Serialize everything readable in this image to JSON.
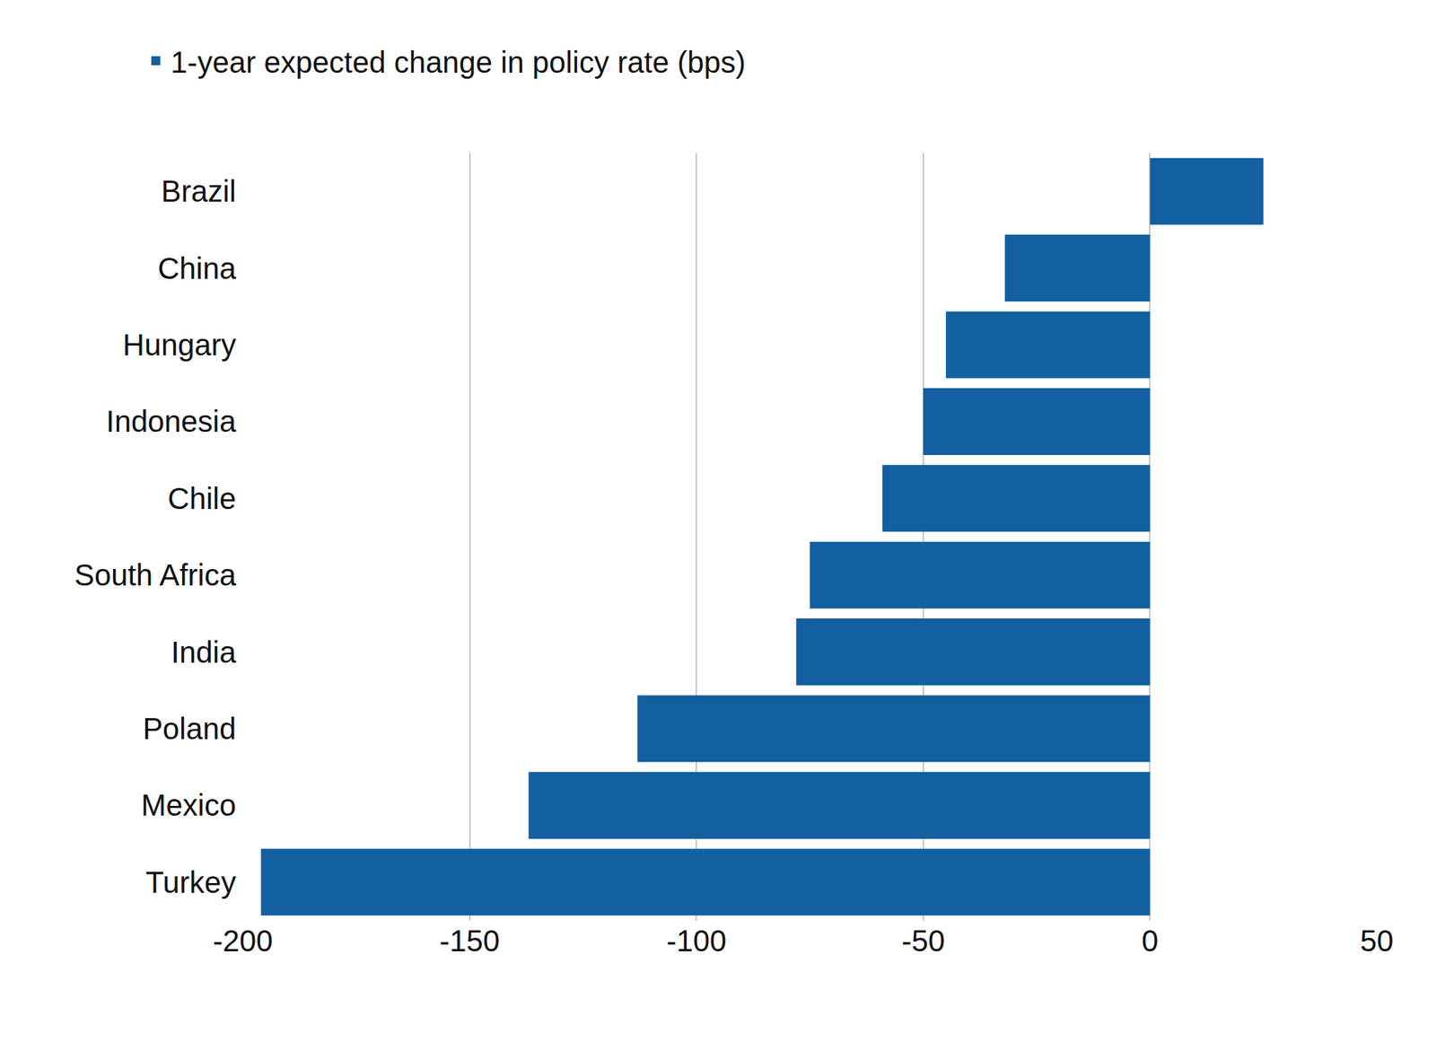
{
  "chart_data": {
    "type": "bar",
    "orientation": "horizontal",
    "categories": [
      "Brazil",
      "China",
      "Hungary",
      "Indonesia",
      "Chile",
      "South Africa",
      "India",
      "Poland",
      "Mexico",
      "Turkey"
    ],
    "series": [
      {
        "name": "1-year expected change in policy rate (bps)",
        "color": "#1260a0",
        "values": [
          25,
          -32,
          -45,
          -50,
          -59,
          -75,
          -78,
          -113,
          -137,
          -196
        ]
      }
    ],
    "xlim": [
      -200,
      50
    ],
    "xticks": [
      -200,
      -150,
      -100,
      -50,
      0,
      50
    ],
    "grid": true,
    "legend": "top"
  }
}
